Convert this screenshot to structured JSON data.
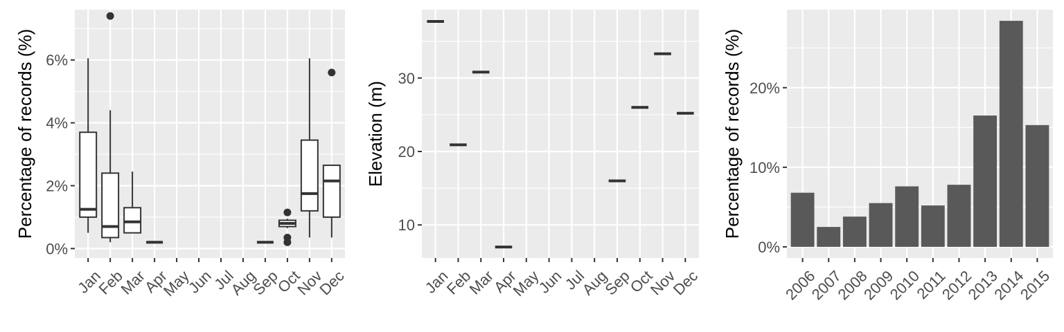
{
  "chart_data": [
    {
      "type": "boxplot",
      "ylabel": "Percentage of records (%)",
      "xlabel": "",
      "categories": [
        "Jan",
        "Feb",
        "Mar",
        "Apr",
        "May",
        "Jun",
        "Jul",
        "Aug",
        "Sep",
        "Oct",
        "Nov",
        "Dec"
      ],
      "ylim": [
        -0.3,
        7.6
      ],
      "yticks": [
        0,
        2,
        4,
        6
      ],
      "ytick_labels": [
        "0%",
        "2%",
        "4%",
        "6%"
      ],
      "grid": true,
      "boxes": [
        {
          "category": "Jan",
          "min": 0.5,
          "q1": 1.0,
          "median": 1.25,
          "q3": 3.7,
          "max": 6.05,
          "outliers": []
        },
        {
          "category": "Feb",
          "min": 0.2,
          "q1": 0.35,
          "median": 0.7,
          "q3": 2.4,
          "max": 4.4,
          "outliers": [
            7.4
          ]
        },
        {
          "category": "Mar",
          "min": 0.5,
          "q1": 0.5,
          "median": 0.85,
          "q3": 1.3,
          "max": 2.45,
          "outliers": []
        },
        {
          "category": "Apr",
          "min": 0.2,
          "q1": 0.2,
          "median": 0.2,
          "q3": 0.2,
          "max": 0.2,
          "outliers": []
        },
        {
          "category": "Sep",
          "min": 0.2,
          "q1": 0.2,
          "median": 0.2,
          "q3": 0.2,
          "max": 0.2,
          "outliers": []
        },
        {
          "category": "Oct",
          "min": 0.65,
          "q1": 0.7,
          "median": 0.8,
          "q3": 0.9,
          "max": 0.95,
          "outliers": [
            1.15,
            0.35,
            0.2
          ]
        },
        {
          "category": "Nov",
          "min": 0.35,
          "q1": 1.2,
          "median": 1.75,
          "q3": 3.45,
          "max": 6.05,
          "outliers": []
        },
        {
          "category": "Dec",
          "min": 0.35,
          "q1": 1.0,
          "median": 2.15,
          "q3": 2.65,
          "max": 2.65,
          "outliers": [
            5.6
          ]
        }
      ]
    },
    {
      "type": "boxplot",
      "ylabel": "Elevation (m)",
      "xlabel": "",
      "categories": [
        "Jan",
        "Feb",
        "Mar",
        "Apr",
        "May",
        "Jun",
        "Jul",
        "Aug",
        "Sep",
        "Oct",
        "Nov",
        "Dec"
      ],
      "ylim": [
        5.5,
        39.3
      ],
      "yticks": [
        10,
        20,
        30
      ],
      "ytick_labels": [
        "10",
        "20",
        "30"
      ],
      "grid": true,
      "boxes": [
        {
          "category": "Jan",
          "min": 37.7,
          "q1": 37.7,
          "median": 37.7,
          "q3": 37.7,
          "max": 37.7,
          "outliers": []
        },
        {
          "category": "Feb",
          "min": 20.9,
          "q1": 20.9,
          "median": 20.9,
          "q3": 20.9,
          "max": 20.9,
          "outliers": []
        },
        {
          "category": "Mar",
          "min": 30.8,
          "q1": 30.8,
          "median": 30.8,
          "q3": 30.8,
          "max": 30.8,
          "outliers": []
        },
        {
          "category": "Apr",
          "min": 7.0,
          "q1": 7.0,
          "median": 7.0,
          "q3": 7.0,
          "max": 7.0,
          "outliers": []
        },
        {
          "category": "Sep",
          "min": 16.0,
          "q1": 16.0,
          "median": 16.0,
          "q3": 16.0,
          "max": 16.0,
          "outliers": []
        },
        {
          "category": "Oct",
          "min": 26.0,
          "q1": 26.0,
          "median": 26.0,
          "q3": 26.0,
          "max": 26.0,
          "outliers": []
        },
        {
          "category": "Nov",
          "min": 33.3,
          "q1": 33.3,
          "median": 33.3,
          "q3": 33.3,
          "max": 33.3,
          "outliers": []
        },
        {
          "category": "Dec",
          "min": 25.2,
          "q1": 25.2,
          "median": 25.2,
          "q3": 25.2,
          "max": 25.2,
          "outliers": []
        }
      ]
    },
    {
      "type": "bar",
      "ylabel": "Percentage of records (%)",
      "xlabel": "",
      "categories": [
        "2006",
        "2007",
        "2008",
        "2009",
        "2010",
        "2011",
        "2012",
        "2013",
        "2014",
        "2015"
      ],
      "values": [
        6.8,
        2.5,
        3.8,
        5.5,
        7.6,
        5.2,
        7.8,
        16.5,
        28.4,
        15.3
      ],
      "ylim": [
        -1.4,
        29.8
      ],
      "yticks": [
        0,
        10,
        20
      ],
      "ytick_labels": [
        "0%",
        "10%",
        "20%"
      ],
      "grid": true,
      "bar_color": "#595959"
    }
  ],
  "style": {
    "panel_background": "#ebebeb",
    "grid_color": "#ffffff",
    "box_line_color": "#333333",
    "tick_label_color": "#4d4d4d",
    "axis_title_color": "#000000"
  }
}
